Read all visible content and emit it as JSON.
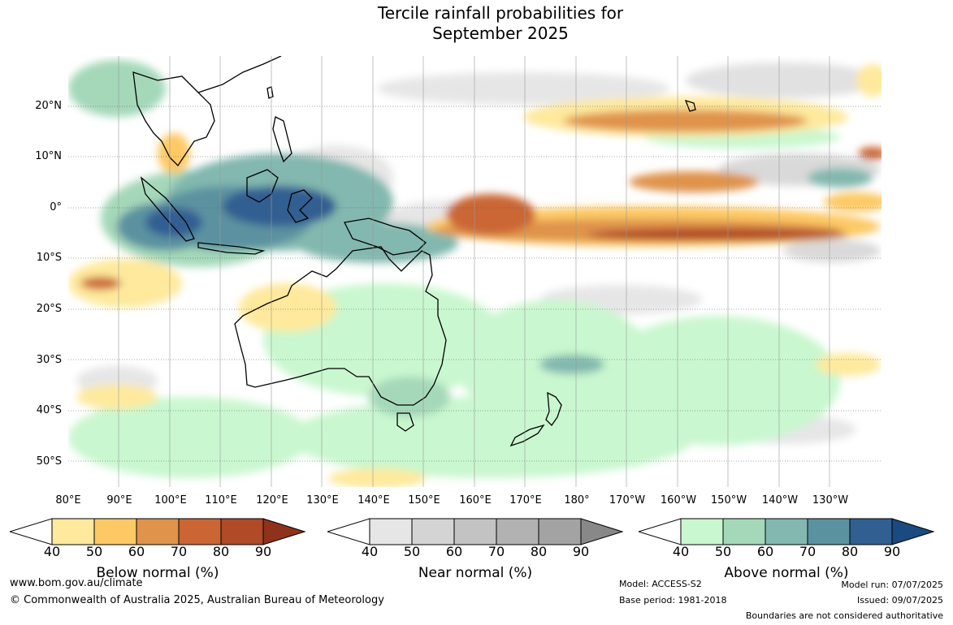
{
  "title": {
    "line1": "Tercile rainfall probabilities for",
    "line2": "September 2025"
  },
  "map": {
    "latitude_labels": [
      "20°N",
      "10°N",
      "0°",
      "10°S",
      "20°S",
      "30°S",
      "40°S",
      "50°S"
    ],
    "longitude_labels": [
      "80°E",
      "90°E",
      "100°E",
      "110°E",
      "120°E",
      "130°E",
      "140°E",
      "150°E",
      "160°E",
      "170°E",
      "180°",
      "170°W",
      "160°W",
      "150°W",
      "140°W",
      "130°W"
    ],
    "latitude_range": [
      -55,
      30
    ],
    "longitude_range": [
      80,
      240
    ]
  },
  "legends": [
    {
      "label": "Below normal (%)",
      "ticks": [
        "40",
        "50",
        "60",
        "70",
        "80",
        "90"
      ],
      "colors": [
        "#ffffff",
        "#fee99c",
        "#fdc965",
        "#df934b",
        "#cb6634",
        "#b04a27",
        "#8f321c"
      ]
    },
    {
      "label": "Near normal (%)",
      "ticks": [
        "40",
        "50",
        "60",
        "70",
        "80",
        "90"
      ],
      "colors": [
        "#ffffff",
        "#e6e6e6",
        "#d4d4d4",
        "#c3c3c3",
        "#b2b2b2",
        "#a3a3a3",
        "#888888"
      ]
    },
    {
      "label": "Above normal (%)",
      "ticks": [
        "40",
        "50",
        "60",
        "70",
        "80",
        "90"
      ],
      "colors": [
        "#ffffff",
        "#c9f7cf",
        "#a4d8b9",
        "#82b8af",
        "#5b92a0",
        "#325f92",
        "#1a4a80"
      ]
    }
  ],
  "footer": {
    "website": "www.bom.gov.au/climate",
    "copyright": "© Commonwealth of Australia 2025, Australian Bureau of Meteorology",
    "model": "Model: ACCESS-S2",
    "base_period": "Base period: 1981-2018",
    "model_run": "Model run: 07/07/2025",
    "issued": "Issued: 09/07/2025",
    "disclaimer": "Boundaries are not considered authoritative"
  }
}
